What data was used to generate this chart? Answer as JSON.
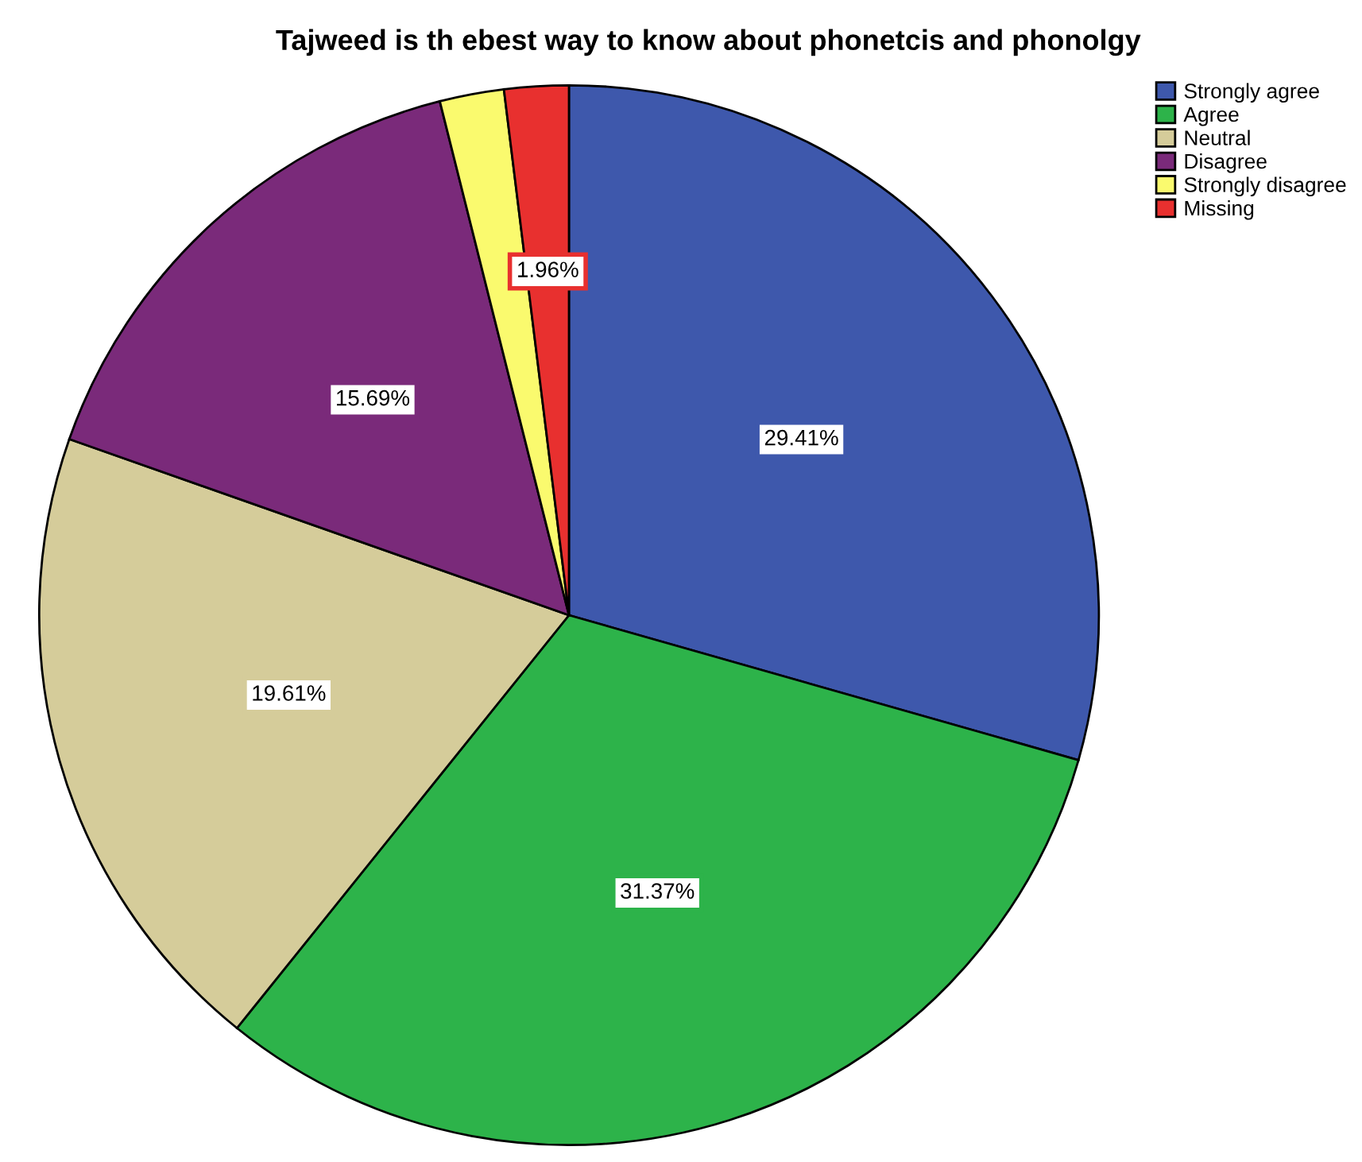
{
  "chart_data": {
    "type": "pie",
    "title": "Tajweed is th ebest way to know about phonetcis and phonolgy",
    "categories": [
      "Strongly agree",
      "Agree",
      "Neutral",
      "Disagree",
      "Strongly disagree",
      "Missing"
    ],
    "values": [
      29.41,
      31.37,
      19.61,
      15.69,
      1.96,
      1.96
    ],
    "colors": [
      "#3e58ac",
      "#2db34a",
      "#d5cc9a",
      "#7a2a7a",
      "#fafa6e",
      "#e8302f"
    ],
    "value_labels": [
      "29.41%",
      "31.37%",
      "19.61%",
      "15.69%",
      null,
      "1.96%"
    ],
    "legend": "top right"
  }
}
